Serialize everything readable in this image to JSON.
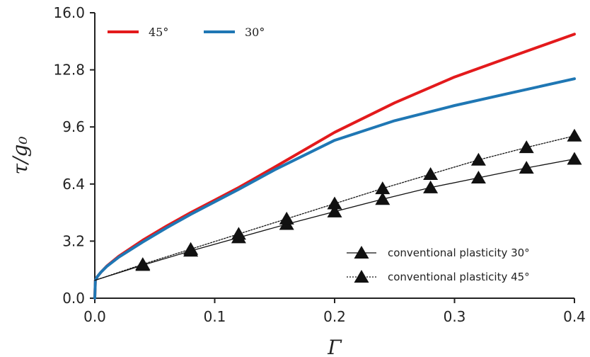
{
  "chart_data": {
    "type": "line",
    "xlabel": "Γ",
    "ylabel": "τ/g₀",
    "xlim": [
      0.0,
      0.4
    ],
    "ylim": [
      0.0,
      16.0
    ],
    "x_ticks": [
      "0.0",
      "0.1",
      "0.2",
      "0.3",
      "0.4"
    ],
    "y_ticks": [
      "0.0",
      "3.2",
      "6.4",
      "9.6",
      "12.8",
      "16.0"
    ],
    "x_tick_values": [
      0.0,
      0.1,
      0.2,
      0.3,
      0.4
    ],
    "y_tick_values": [
      0.0,
      3.2,
      6.4,
      9.6,
      12.8,
      16.0
    ],
    "grid": false,
    "series": [
      {
        "name": "45°",
        "color": "#e31a1c",
        "style": "solid-thick",
        "x": [
          0.0,
          0.0005,
          0.002,
          0.005,
          0.01,
          0.02,
          0.04,
          0.06,
          0.08,
          0.1,
          0.12,
          0.15,
          0.2,
          0.25,
          0.3,
          0.35,
          0.4
        ],
        "y": [
          0.0,
          1.0,
          1.2,
          1.45,
          1.8,
          2.35,
          3.25,
          4.05,
          4.8,
          5.5,
          6.2,
          7.35,
          9.3,
          10.95,
          12.4,
          13.6,
          14.8
        ]
      },
      {
        "name": "30°",
        "color": "#1f77b4",
        "style": "solid-thick",
        "x": [
          0.0,
          0.0005,
          0.002,
          0.005,
          0.01,
          0.02,
          0.04,
          0.06,
          0.08,
          0.1,
          0.12,
          0.15,
          0.2,
          0.25,
          0.3,
          0.35,
          0.4
        ],
        "y": [
          0.0,
          1.0,
          1.2,
          1.45,
          1.78,
          2.3,
          3.15,
          3.95,
          4.7,
          5.4,
          6.1,
          7.2,
          8.85,
          9.95,
          10.8,
          11.55,
          12.3
        ]
      },
      {
        "name": "conventional plasticity 30°",
        "color": "#111111",
        "style": "solid-thin",
        "marker": "triangle",
        "x": [
          0.0,
          0.04,
          0.08,
          0.12,
          0.16,
          0.2,
          0.24,
          0.28,
          0.32,
          0.36,
          0.4
        ],
        "y": [
          1.0,
          1.85,
          2.65,
          3.4,
          4.15,
          4.85,
          5.55,
          6.2,
          6.75,
          7.3,
          7.8
        ]
      },
      {
        "name": "conventional plasticity 45°",
        "color": "#111111",
        "style": "dotted-thin",
        "marker": "triangle",
        "x": [
          0.0,
          0.04,
          0.08,
          0.12,
          0.16,
          0.2,
          0.24,
          0.28,
          0.32,
          0.36,
          0.4
        ],
        "y": [
          1.0,
          1.9,
          2.75,
          3.6,
          4.45,
          5.3,
          6.15,
          6.95,
          7.75,
          8.45,
          9.1
        ]
      }
    ],
    "legend_top": [
      "45°",
      "30°"
    ],
    "legend_bottom": [
      "conventional plasticity 30°",
      "conventional plasticity 45°"
    ]
  }
}
